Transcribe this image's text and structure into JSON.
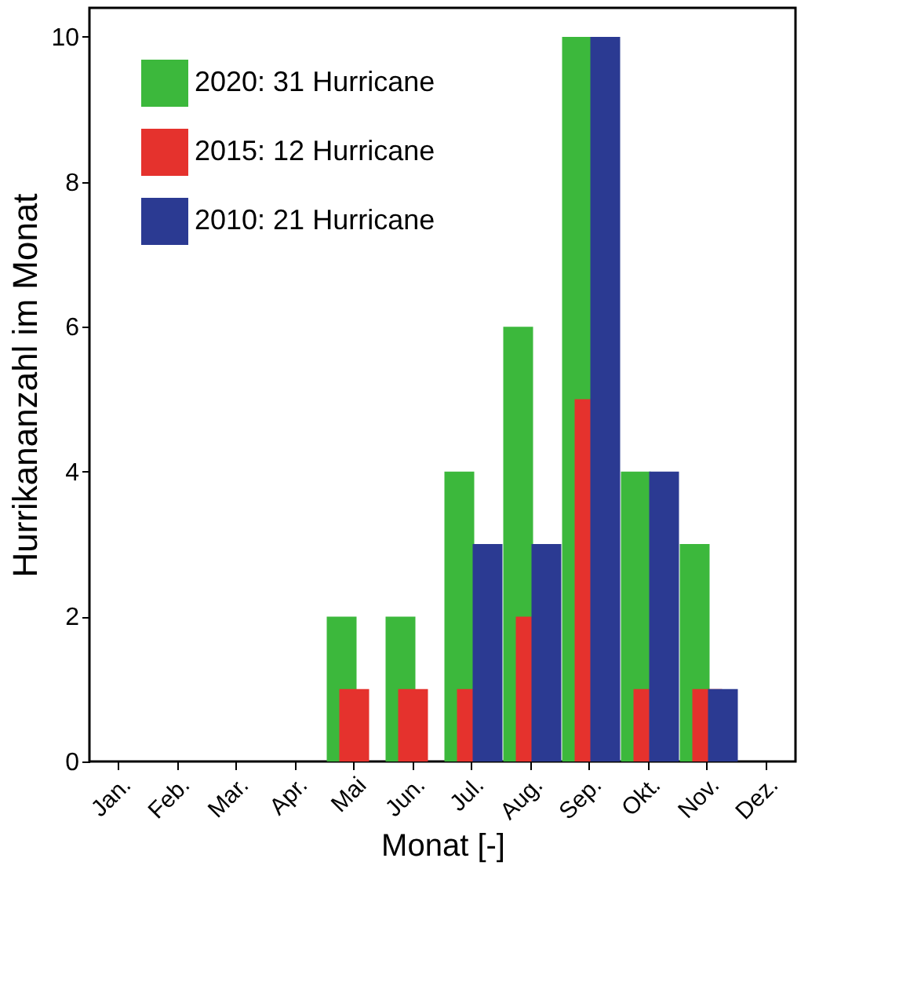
{
  "chart_data": {
    "type": "bar",
    "ylabel": "Hurrikananzahl im Monat",
    "xlabel": "Monat [-]",
    "categories": [
      "Jan.",
      "Feb.",
      "Mar.",
      "Apr.",
      "Mai",
      "Jun.",
      "Jul.",
      "Aug.",
      "Sep.",
      "Okt.",
      "Nov.",
      "Dez."
    ],
    "series": [
      {
        "name": "2020: 31 Hurricane",
        "color": "#3cb83c",
        "values": [
          0,
          0,
          0,
          0,
          2,
          2,
          4,
          6,
          10,
          4,
          3,
          0
        ]
      },
      {
        "name": "2015: 12 Hurricane",
        "color": "#e5322d",
        "values": [
          0,
          0,
          0,
          0,
          1,
          1,
          1,
          2,
          5,
          1,
          1,
          0
        ]
      },
      {
        "name": "2010: 21 Hurricane",
        "color": "#2b3a92",
        "values": [
          0,
          0,
          0,
          0,
          0,
          0,
          3,
          3,
          10,
          4,
          1,
          0
        ]
      }
    ],
    "ylim": [
      0,
      10.4
    ],
    "yticks": [
      0,
      2,
      4,
      6,
      8,
      10
    ],
    "grid": false,
    "legend": "top left"
  }
}
